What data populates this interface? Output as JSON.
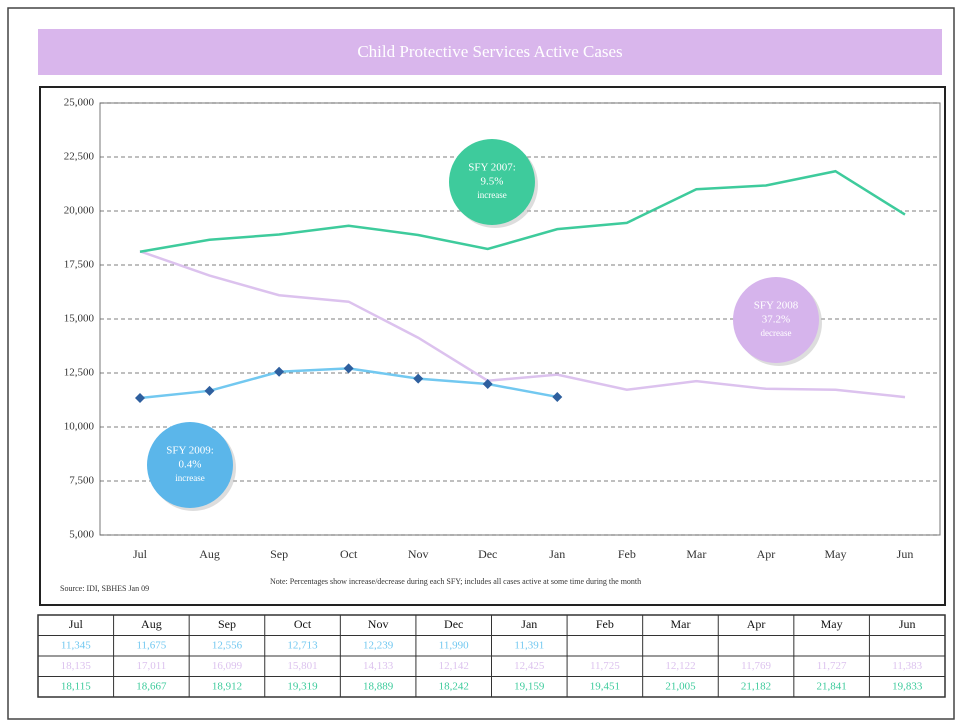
{
  "chart_data": {
    "type": "line",
    "title": "Child Protective Services Active Cases",
    "categories": [
      "Jul",
      "Aug",
      "Sep",
      "Oct",
      "Nov",
      "Dec",
      "Jan",
      "Feb",
      "Mar",
      "Apr",
      "May",
      "Jun"
    ],
    "ylim": [
      5000,
      25000
    ],
    "yticks": [
      {
        "value": 5000,
        "label": "5,000"
      },
      {
        "value": 7500,
        "label": "7,500"
      },
      {
        "value": 10000,
        "label": "10,000"
      },
      {
        "value": 12500,
        "label": "12,500"
      },
      {
        "value": 15000,
        "label": "15,000"
      },
      {
        "value": 17500,
        "label": "17,500"
      },
      {
        "value": 20000,
        "label": "20,000"
      },
      {
        "value": 22500,
        "label": "22,500"
      },
      {
        "value": 25000,
        "label": "25,000"
      }
    ],
    "grid": true,
    "series": [
      {
        "color": "#72c8f0",
        "marker_color": "#2e5f9e",
        "values": [
          11345,
          11675,
          12556,
          12713,
          12239,
          11990,
          11391,
          null,
          null,
          null,
          null,
          null
        ],
        "value_labels": [
          "11,345",
          "11,675",
          "12,556",
          "12,713",
          "12,239",
          "11,990",
          "11,391",
          null,
          null,
          null,
          null,
          null
        ]
      },
      {
        "color": "#dcc2ee",
        "values": [
          18135,
          17011,
          16099,
          15801,
          14133,
          12142,
          12425,
          11725,
          12122,
          11769,
          11727,
          11383
        ],
        "value_labels": [
          "18,135",
          "17,011",
          "16,099",
          "15,801",
          "14,133",
          "12,142",
          "12,425",
          "11,725",
          "12,122",
          "11,769",
          "11,727",
          "11,383"
        ]
      },
      {
        "color": "#3ecb9c",
        "values": [
          18115,
          18667,
          18912,
          19319,
          18889,
          18242,
          19159,
          19451,
          21005,
          21182,
          21841,
          19833
        ],
        "value_labels": [
          "18,115",
          "18,667",
          "18,912",
          "19,319",
          "18,889",
          "18,242",
          "19,159",
          "19,451",
          "21,005",
          "21,182",
          "21,841",
          "19,833"
        ]
      }
    ],
    "annotations": [
      {
        "lines": [
          "SFY 2007:",
          "9.5%",
          "increase"
        ],
        "color": "#3ecb9c"
      },
      {
        "lines": [
          "SFY 2008",
          "37.2%",
          "decrease"
        ],
        "color": "#d6b4ec"
      },
      {
        "lines": [
          "SFY 2009:",
          "0.4%",
          "increase"
        ],
        "color": "#5bb6ea"
      }
    ],
    "source": "Source: IDI, SBHES Jan 09",
    "note": "Note: Percentages show increase/decrease during each SFY; includes all cases active at some time during the month"
  }
}
